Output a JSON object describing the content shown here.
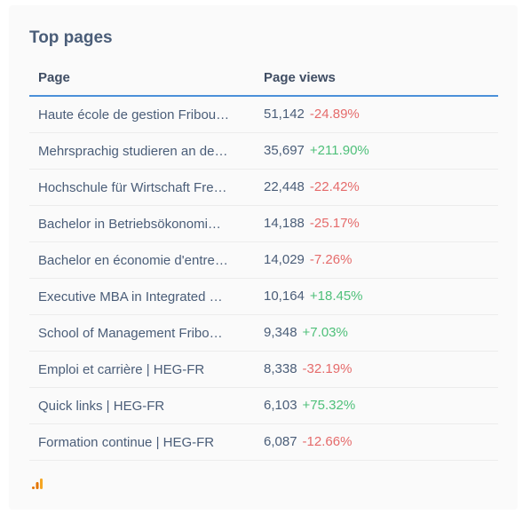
{
  "widget": {
    "title": "Top pages",
    "columns": {
      "page": "Page",
      "views": "Page views"
    },
    "rows": [
      {
        "page": "Haute école de gestion Fribou…",
        "views": "51,142",
        "change": "-24.89%",
        "trend": "neg"
      },
      {
        "page": "Mehrsprachig studieren an de…",
        "views": "35,697",
        "change": "+211.90%",
        "trend": "pos"
      },
      {
        "page": "Hochschule für Wirtschaft Fre…",
        "views": "22,448",
        "change": "-22.42%",
        "trend": "neg"
      },
      {
        "page": "Bachelor in Betriebsökonomi…",
        "views": "14,188",
        "change": "-25.17%",
        "trend": "neg"
      },
      {
        "page": "Bachelor en économie d'entre…",
        "views": "14,029",
        "change": "-7.26%",
        "trend": "neg"
      },
      {
        "page": "Executive MBA in Integrated …",
        "views": "10,164",
        "change": "+18.45%",
        "trend": "pos"
      },
      {
        "page": "School of Management Fribo…",
        "views": "9,348",
        "change": "+7.03%",
        "trend": "pos"
      },
      {
        "page": "Emploi et carrière | HEG-FR",
        "views": "8,338",
        "change": "-32.19%",
        "trend": "neg"
      },
      {
        "page": "Quick links | HEG-FR",
        "views": "6,103",
        "change": "+75.32%",
        "trend": "pos"
      },
      {
        "page": "Formation continue | HEG-FR",
        "views": "6,087",
        "change": "-12.66%",
        "trend": "neg"
      }
    ],
    "footer_icon": "analytics-icon",
    "colors": {
      "accent": "#4a90d9",
      "negative": "#e56b6b",
      "positive": "#4fc07a",
      "icon_orange": "#f5a623",
      "icon_dark": "#e37400"
    }
  }
}
